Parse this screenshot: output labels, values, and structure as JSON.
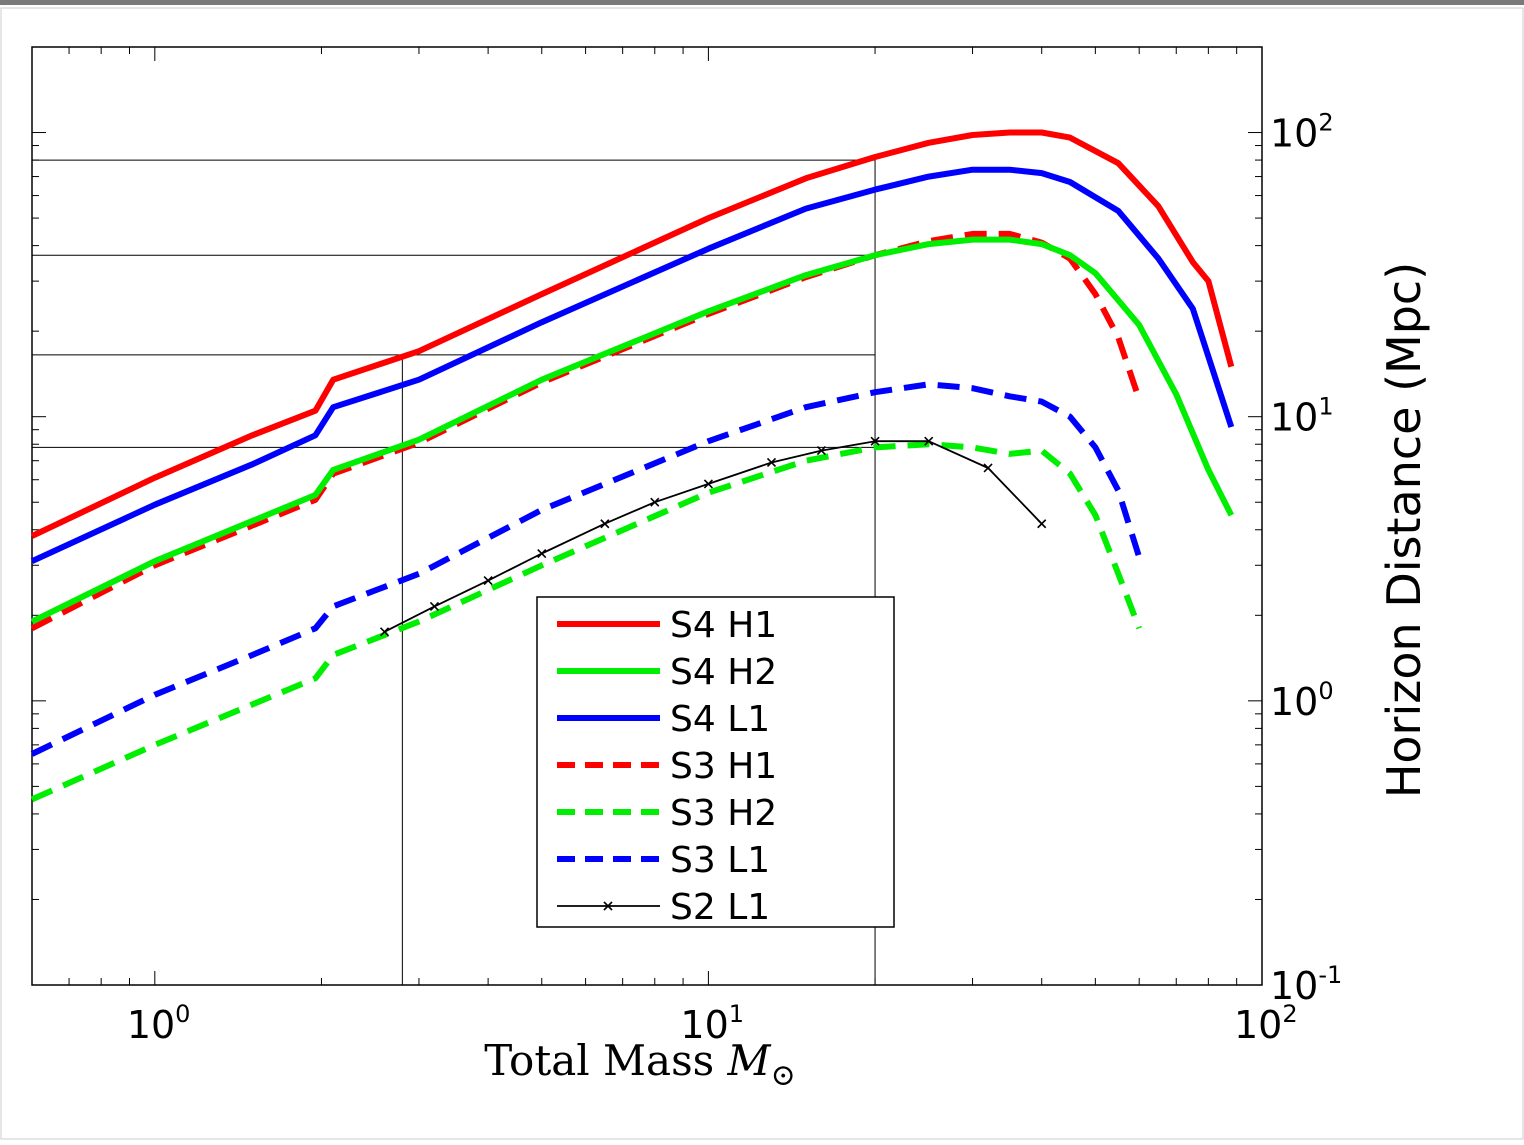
{
  "chart_data": {
    "type": "line",
    "title": "",
    "xlabel": "Total Mass",
    "xlabel_symbol": "M",
    "xlabel_subscript": "⊙",
    "ylabel_right": "Horizon Distance (Mpc)",
    "x_scale": "log",
    "y_scale": "log",
    "xlim": [
      0.6,
      100
    ],
    "ylim": [
      0.1,
      200
    ],
    "x_ticks": [
      {
        "value": 1,
        "base": "10",
        "exp": "0"
      },
      {
        "value": 10,
        "base": "10",
        "exp": "1"
      },
      {
        "value": 100,
        "base": "10",
        "exp": "2"
      }
    ],
    "y_ticks": [
      {
        "value": 0.1,
        "base": "10",
        "exp": "-1"
      },
      {
        "value": 1,
        "base": "10",
        "exp": "0"
      },
      {
        "value": 10,
        "base": "10",
        "exp": "1"
      },
      {
        "value": 100,
        "base": "10",
        "exp": "2"
      }
    ],
    "grid": false,
    "legend_position": "center",
    "reference_lines": {
      "vertical_x": [
        2.8,
        20
      ],
      "horizontal_y": [
        80,
        37,
        16.5,
        7.8
      ]
    },
    "series": [
      {
        "name": "S4 H1",
        "color": "#ff0000",
        "style": "solid",
        "x": [
          0.6,
          1,
          1.5,
          1.95,
          2.1,
          3,
          5,
          10,
          15,
          20,
          25,
          30,
          35,
          40,
          45,
          55,
          65,
          75,
          80,
          88
        ],
        "y": [
          3.8,
          6.1,
          8.6,
          10.5,
          13.5,
          17,
          27,
          50,
          69,
          82,
          92,
          98,
          100,
          100,
          96,
          78,
          55,
          35,
          30,
          15
        ]
      },
      {
        "name": "S4 H2",
        "color": "#00ee00",
        "style": "solid",
        "x": [
          0.6,
          1,
          1.95,
          2.1,
          3,
          5,
          10,
          15,
          20,
          25,
          30,
          35,
          40,
          45,
          50,
          60,
          70,
          80,
          88
        ],
        "y": [
          1.9,
          3.1,
          5.3,
          6.5,
          8.3,
          13.5,
          23.5,
          31.5,
          37,
          40.5,
          42,
          42,
          40.5,
          37,
          32,
          21,
          12,
          6.5,
          4.5
        ]
      },
      {
        "name": "S4 L1",
        "color": "#0000ff",
        "style": "solid",
        "x": [
          0.6,
          1,
          1.5,
          1.95,
          2.1,
          3,
          5,
          10,
          15,
          20,
          25,
          30,
          35,
          40,
          45,
          55,
          65,
          75,
          88
        ],
        "y": [
          3.1,
          4.9,
          6.8,
          8.6,
          10.8,
          13.5,
          21.5,
          39,
          54,
          63,
          70,
          74,
          74,
          72,
          67,
          53,
          36,
          24,
          9.2
        ]
      },
      {
        "name": "S3 H1",
        "color": "#ff0000",
        "style": "dashed",
        "x": [
          0.6,
          1,
          1.95,
          2.1,
          3,
          5,
          10,
          15,
          20,
          25,
          30,
          35,
          40,
          45,
          50,
          55,
          60
        ],
        "y": [
          1.8,
          3,
          5.1,
          6.3,
          8.1,
          13.2,
          23,
          31,
          37,
          41.5,
          44,
          44,
          41,
          36,
          27,
          19,
          11.5
        ]
      },
      {
        "name": "S3 H2",
        "color": "#00ee00",
        "style": "dashed",
        "x": [
          0.6,
          1,
          1.95,
          2.1,
          3,
          5,
          10,
          15,
          20,
          25,
          30,
          35,
          40,
          45,
          50,
          55,
          60
        ],
        "y": [
          0.45,
          0.7,
          1.2,
          1.45,
          1.9,
          3,
          5.4,
          7,
          7.8,
          8,
          7.8,
          7.4,
          7.6,
          6.3,
          4.5,
          2.8,
          1.8
        ]
      },
      {
        "name": "S3 L1",
        "color": "#0000ff",
        "style": "dashed",
        "x": [
          0.6,
          1,
          1.5,
          1.95,
          2.1,
          3,
          5,
          10,
          15,
          20,
          25,
          30,
          35,
          40,
          45,
          50,
          55,
          60
        ],
        "y": [
          0.65,
          1.05,
          1.45,
          1.8,
          2.15,
          2.8,
          4.7,
          8.2,
          10.8,
          12.2,
          13,
          12.6,
          11.8,
          11.3,
          10,
          7.8,
          5.5,
          3.2
        ]
      },
      {
        "name": "S2 L1",
        "color": "#000000",
        "style": "solid-marker",
        "x": [
          2.6,
          3.2,
          4,
          5,
          6.5,
          8,
          10,
          13,
          16,
          20,
          25,
          32,
          40
        ],
        "y": [
          1.75,
          2.15,
          2.65,
          3.3,
          4.2,
          5,
          5.8,
          6.9,
          7.6,
          8.2,
          8.2,
          6.6,
          4.2
        ]
      }
    ]
  }
}
